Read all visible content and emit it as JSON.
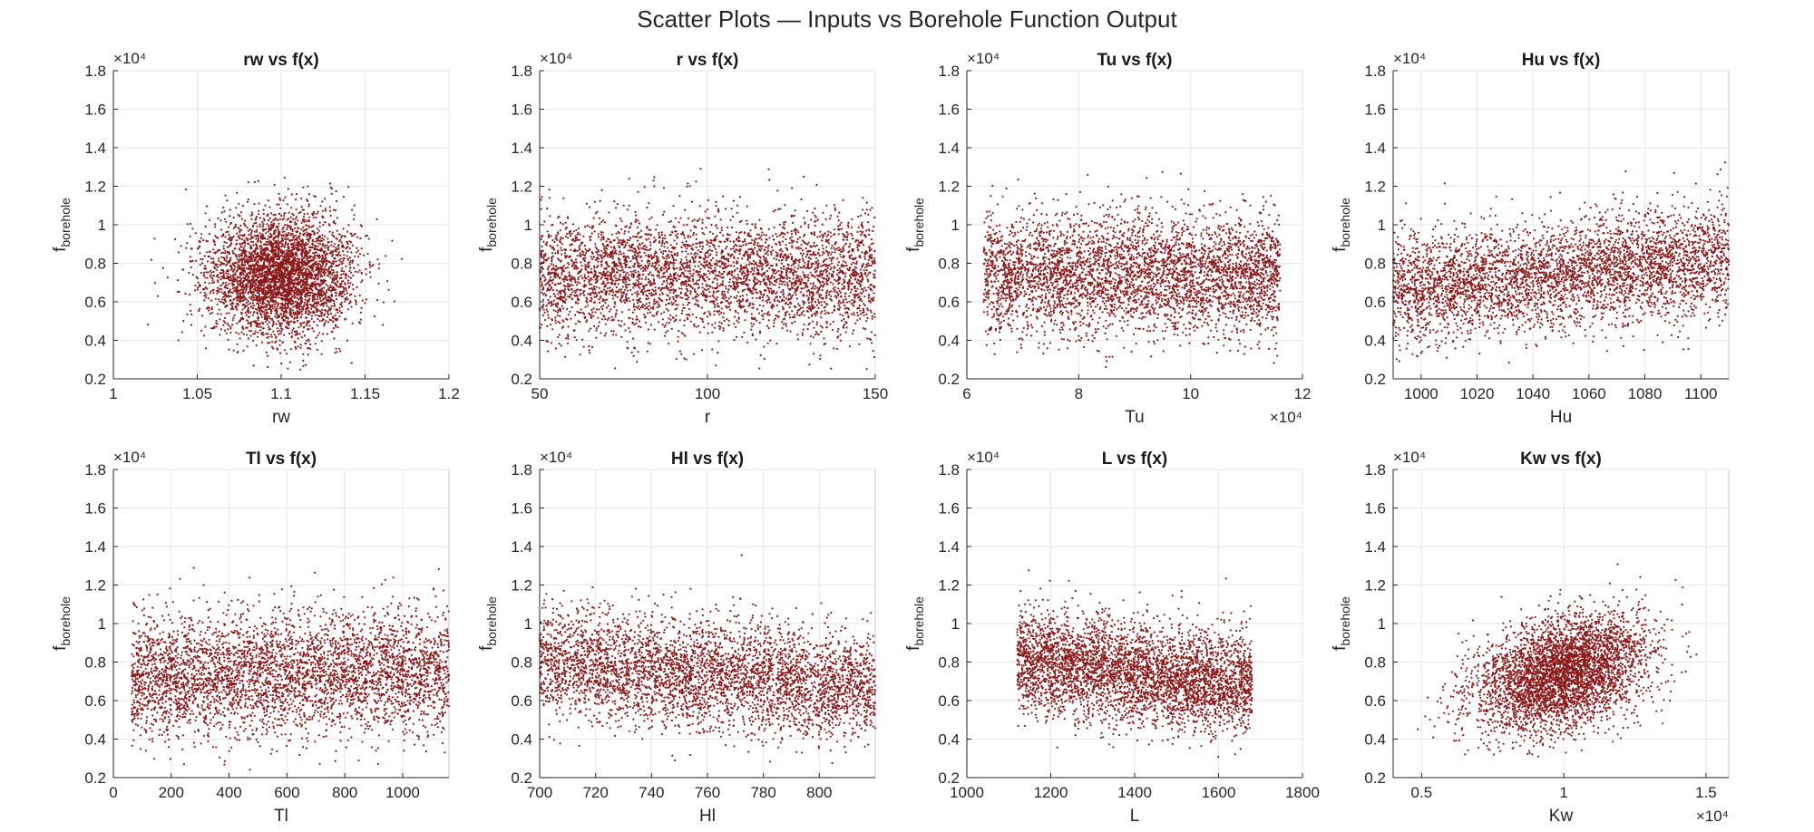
{
  "figure_title": "Scatter Plots — Inputs vs Borehole Function Output",
  "colors": {
    "point": "#8b1a1a",
    "grid": "#e6e6e6",
    "axis": "#262626",
    "frame": "#c8c8c8"
  },
  "chart_data": [
    {
      "type": "scatter",
      "title": "rw vs f(x)",
      "xlabel": "rw",
      "ylabel_base": "f",
      "ylabel_sub": "borehole",
      "xlim": [
        1,
        1.2
      ],
      "xticks": [
        1,
        1.05,
        1.1,
        1.15,
        1.2
      ],
      "xtick_labels": [
        "1",
        "1.05",
        "1.1",
        "1.15",
        "1.2"
      ],
      "x_exponent": "",
      "ylim": [
        0.2,
        1.8
      ],
      "yticks": [
        0.2,
        0.4,
        0.6,
        0.8,
        1,
        1.2,
        1.4,
        1.6,
        1.8
      ],
      "ytick_labels": [
        "0.2",
        "0.4",
        "0.6",
        "0.8",
        "1",
        "1.2",
        "1.4",
        "1.6",
        "1.8"
      ],
      "y_exponent": "×10⁴",
      "grid": true,
      "x_distribution": "normal",
      "x_mean": 1.1,
      "x_sd": 0.022,
      "x_min": 1.02,
      "x_max": 1.18,
      "y_mean": 0.74,
      "y_sd": 0.19,
      "trend": 0.0,
      "n_points": 4000
    },
    {
      "type": "scatter",
      "title": "r vs f(x)",
      "xlabel": "r",
      "ylabel_base": "f",
      "ylabel_sub": "borehole",
      "xlim": [
        50,
        150
      ],
      "xticks": [
        50,
        100,
        150
      ],
      "xtick_labels": [
        "50",
        "100",
        "150"
      ],
      "x_exponent": "",
      "ylim": [
        0.2,
        1.8
      ],
      "yticks": [
        0.2,
        0.4,
        0.6,
        0.8,
        1,
        1.2,
        1.4,
        1.6,
        1.8
      ],
      "ytick_labels": [
        "0.2",
        "0.4",
        "0.6",
        "0.8",
        "1",
        "1.2",
        "1.4",
        "1.6",
        "1.8"
      ],
      "y_exponent": "×10⁴",
      "grid": true,
      "x_distribution": "uniform",
      "x_min": 50,
      "x_max": 150,
      "y_mean": 0.74,
      "y_sd": 0.19,
      "trend": 0.0,
      "n_points": 4000
    },
    {
      "type": "scatter",
      "title": "Tu vs f(x)",
      "xlabel": "Tu",
      "ylabel_base": "f",
      "ylabel_sub": "borehole",
      "xlim": [
        6,
        12
      ],
      "xticks": [
        6,
        8,
        10,
        12
      ],
      "xtick_labels": [
        "6",
        "8",
        "10",
        "12"
      ],
      "x_exponent": "×10⁴",
      "ylim": [
        0.2,
        1.8
      ],
      "yticks": [
        0.2,
        0.4,
        0.6,
        0.8,
        1,
        1.2,
        1.4,
        1.6,
        1.8
      ],
      "ytick_labels": [
        "0.2",
        "0.4",
        "0.6",
        "0.8",
        "1",
        "1.2",
        "1.4",
        "1.6",
        "1.8"
      ],
      "y_exponent": "×10⁴",
      "grid": true,
      "x_distribution": "uniform",
      "x_min": 6.3,
      "x_max": 11.6,
      "y_mean": 0.74,
      "y_sd": 0.19,
      "trend": 0.0,
      "n_points": 4000
    },
    {
      "type": "scatter",
      "title": "Hu vs f(x)",
      "xlabel": "Hu",
      "ylabel_base": "f",
      "ylabel_sub": "borehole",
      "xlim": [
        990,
        1110
      ],
      "xticks": [
        1000,
        1020,
        1040,
        1060,
        1080,
        1100
      ],
      "xtick_labels": [
        "1000",
        "1020",
        "1040",
        "1060",
        "1080",
        "1100"
      ],
      "x_exponent": "",
      "ylim": [
        0.2,
        1.8
      ],
      "yticks": [
        0.2,
        0.4,
        0.6,
        0.8,
        1,
        1.2,
        1.4,
        1.6,
        1.8
      ],
      "ytick_labels": [
        "0.2",
        "0.4",
        "0.6",
        "0.8",
        "1",
        "1.2",
        "1.4",
        "1.6",
        "1.8"
      ],
      "y_exponent": "×10⁴",
      "grid": true,
      "x_distribution": "uniform",
      "x_min": 990,
      "x_max": 1110,
      "y_mean": 0.74,
      "y_sd": 0.17,
      "trend": 0.32,
      "n_points": 4000
    },
    {
      "type": "scatter",
      "title": "Tl vs f(x)",
      "xlabel": "Tl",
      "ylabel_base": "f",
      "ylabel_sub": "borehole",
      "xlim": [
        0,
        1160
      ],
      "xticks": [
        0,
        200,
        400,
        600,
        800,
        1000
      ],
      "xtick_labels": [
        "0",
        "200",
        "400",
        "600",
        "800",
        "1000"
      ],
      "x_exponent": "",
      "ylim": [
        0.2,
        1.8
      ],
      "yticks": [
        0.2,
        0.4,
        0.6,
        0.8,
        1,
        1.2,
        1.4,
        1.6,
        1.8
      ],
      "ytick_labels": [
        "0.2",
        "0.4",
        "0.6",
        "0.8",
        "1",
        "1.2",
        "1.4",
        "1.6",
        "1.8"
      ],
      "y_exponent": "×10⁴",
      "grid": true,
      "x_distribution": "uniform",
      "x_min": 63,
      "x_max": 1160,
      "y_mean": 0.74,
      "y_sd": 0.19,
      "trend": 0.08,
      "n_points": 4000
    },
    {
      "type": "scatter",
      "title": "Hl vs f(x)",
      "xlabel": "Hl",
      "ylabel_base": "f",
      "ylabel_sub": "borehole",
      "xlim": [
        700,
        820
      ],
      "xticks": [
        700,
        720,
        740,
        760,
        780,
        800
      ],
      "xtick_labels": [
        "700",
        "720",
        "740",
        "760",
        "780",
        "800"
      ],
      "x_exponent": "",
      "ylim": [
        0.2,
        1.8
      ],
      "yticks": [
        0.2,
        0.4,
        0.6,
        0.8,
        1,
        1.2,
        1.4,
        1.6,
        1.8
      ],
      "ytick_labels": [
        "0.2",
        "0.4",
        "0.6",
        "0.8",
        "1",
        "1.2",
        "1.4",
        "1.6",
        "1.8"
      ],
      "y_exponent": "×10⁴",
      "grid": true,
      "x_distribution": "uniform",
      "x_min": 700,
      "x_max": 820,
      "y_mean": 0.74,
      "y_sd": 0.17,
      "trend": -0.3,
      "n_points": 4000
    },
    {
      "type": "scatter",
      "title": "L vs f(x)",
      "xlabel": "L",
      "ylabel_base": "f",
      "ylabel_sub": "borehole",
      "xlim": [
        1000,
        1800
      ],
      "xticks": [
        1000,
        1200,
        1400,
        1600,
        1800
      ],
      "xtick_labels": [
        "1000",
        "1200",
        "1400",
        "1600",
        "1800"
      ],
      "x_exponent": "",
      "ylim": [
        0.2,
        1.8
      ],
      "yticks": [
        0.2,
        0.4,
        0.6,
        0.8,
        1,
        1.2,
        1.4,
        1.6,
        1.8
      ],
      "ytick_labels": [
        "0.2",
        "0.4",
        "0.6",
        "0.8",
        "1",
        "1.2",
        "1.4",
        "1.6",
        "1.8"
      ],
      "y_exponent": "×10⁴",
      "grid": true,
      "x_distribution": "uniform",
      "x_min": 1120,
      "x_max": 1680,
      "y_mean": 0.74,
      "y_sd": 0.16,
      "trend": -0.3,
      "n_points": 4000
    },
    {
      "type": "scatter",
      "title": "Kw vs f(x)",
      "xlabel": "Kw",
      "ylabel_base": "f",
      "ylabel_sub": "borehole",
      "xlim": [
        0.4,
        1.58
      ],
      "xticks": [
        0.5,
        1,
        1.5
      ],
      "xtick_labels": [
        "0.5",
        "1",
        "1.5"
      ],
      "x_exponent": "×10⁴",
      "ylim": [
        0.2,
        1.8
      ],
      "yticks": [
        0.2,
        0.4,
        0.6,
        0.8,
        1,
        1.2,
        1.4,
        1.6,
        1.8
      ],
      "ytick_labels": [
        "0.2",
        "0.4",
        "0.6",
        "0.8",
        "1",
        "1.2",
        "1.4",
        "1.6",
        "1.8"
      ],
      "y_exponent": "×10⁴",
      "grid": true,
      "x_distribution": "normal",
      "x_mean": 0.99,
      "x_sd": 0.15,
      "x_min": 0.45,
      "x_max": 1.58,
      "y_mean": 0.74,
      "y_sd": 0.17,
      "trend": 0.75,
      "n_points": 4000
    }
  ]
}
